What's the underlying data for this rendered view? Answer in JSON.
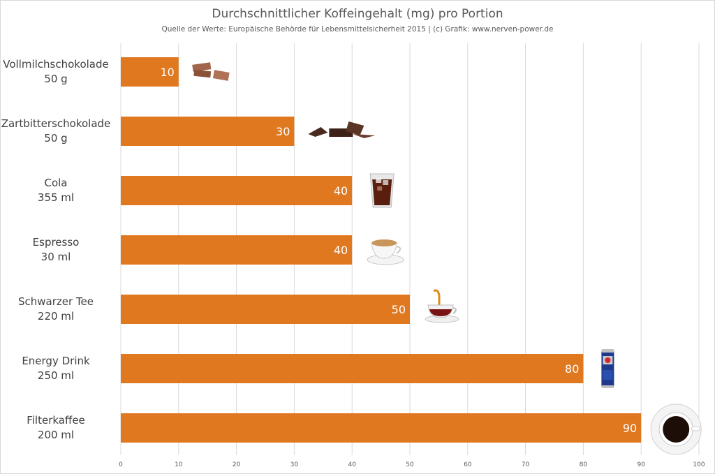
{
  "title": "Durchschnittlicher Koffeingehalt (mg) pro Portion",
  "subtitle": "Quelle der Werte: Europäische Behörde für Lebensmittelsicherheit 2015 | (c) Grafik: www.nerven-power.de",
  "colors": {
    "bar": "#E07820",
    "grid": "#d9d9d9",
    "text": "#404040"
  },
  "chart_data": {
    "type": "bar",
    "orientation": "horizontal",
    "title": "Durchschnittlicher Koffeingehalt (mg) pro Portion",
    "subtitle": "Quelle der Werte: Europäische Behörde für Lebensmittelsicherheit 2015 | (c) Grafik: www.nerven-power.de",
    "categories": [
      [
        "Vollmilchschokolade",
        "50 g"
      ],
      [
        "Zartbitterschokolade",
        "50 g"
      ],
      [
        "Cola",
        "355 ml"
      ],
      [
        "Espresso",
        "30 ml"
      ],
      [
        "Schwarzer Tee",
        "220 ml"
      ],
      [
        "Energy Drink",
        "250 ml"
      ],
      [
        "Filterkaffee",
        "200 ml"
      ]
    ],
    "values": [
      10,
      30,
      40,
      40,
      50,
      80,
      90
    ],
    "data_labels": [
      "10",
      "30",
      "40",
      "40",
      "50",
      "80",
      "90"
    ],
    "icons": [
      "milk-chocolate-icon",
      "dark-chocolate-icon",
      "cola-glass-icon",
      "espresso-cup-icon",
      "tea-cup-icon",
      "energy-drink-can-icon",
      "coffee-cup-icon"
    ],
    "xlim": [
      0,
      100
    ],
    "xticks": [
      0,
      10,
      20,
      30,
      40,
      50,
      60,
      70,
      80,
      90,
      100
    ],
    "grid": true,
    "legend": "none"
  }
}
